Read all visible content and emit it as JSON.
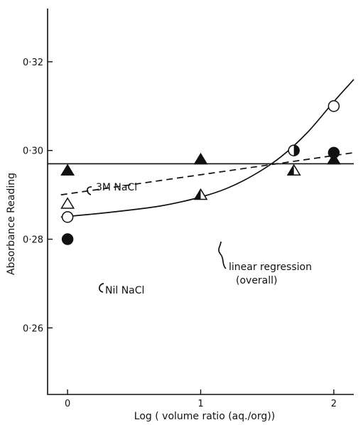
{
  "chart_data": {
    "type": "scatter",
    "xlabel": "Log ( volume ratio (aq./org))",
    "ylabel": "Absorbance Reading",
    "xlim": [
      -0.15,
      2.15
    ],
    "ylim": [
      0.245,
      0.332
    ],
    "x_ticks": [
      0,
      1,
      2
    ],
    "x_tick_labels": [
      "0",
      "1",
      "2"
    ],
    "y_ticks": [
      0.26,
      0.28,
      0.3,
      0.32
    ],
    "y_tick_labels": [
      "0·26",
      "0·28",
      "0·30",
      "0·32"
    ],
    "grid": false,
    "series": [
      {
        "marker": "filled-triangle",
        "x": [
          0,
          1,
          2
        ],
        "y": [
          0.2955,
          0.298,
          0.298
        ]
      },
      {
        "marker": "open-triangle",
        "x": [
          0
        ],
        "y": [
          0.288
        ]
      },
      {
        "marker": "half-triangle",
        "x": [
          1,
          1.7
        ],
        "y": [
          0.29,
          0.2955
        ]
      },
      {
        "marker": "open-circle",
        "x": [
          0,
          2
        ],
        "y": [
          0.285,
          0.31
        ]
      },
      {
        "marker": "filled-circle",
        "x": [
          0,
          2
        ],
        "y": [
          0.28,
          0.2995
        ]
      },
      {
        "marker": "half-circle",
        "x": [
          1.7
        ],
        "y": [
          0.3
        ]
      }
    ],
    "lines": [
      {
        "label": "3M NaCl",
        "style": "solid",
        "x": [
          -0.15,
          2.15
        ],
        "y": [
          0.297,
          0.297
        ]
      },
      {
        "label": "linear regression\n(overall)",
        "style": "dashed",
        "x": [
          -0.05,
          2.15
        ],
        "y": [
          0.29,
          0.2995
        ]
      },
      {
        "label": "Nil NaCl",
        "style": "solid-curve",
        "x": [
          -0.05,
          0.3,
          0.7,
          1.0,
          1.2,
          1.4,
          1.6,
          1.8,
          2.0,
          2.15
        ],
        "y": [
          0.285,
          0.286,
          0.2875,
          0.2895,
          0.2915,
          0.2945,
          0.2985,
          0.304,
          0.311,
          0.316
        ]
      }
    ]
  }
}
